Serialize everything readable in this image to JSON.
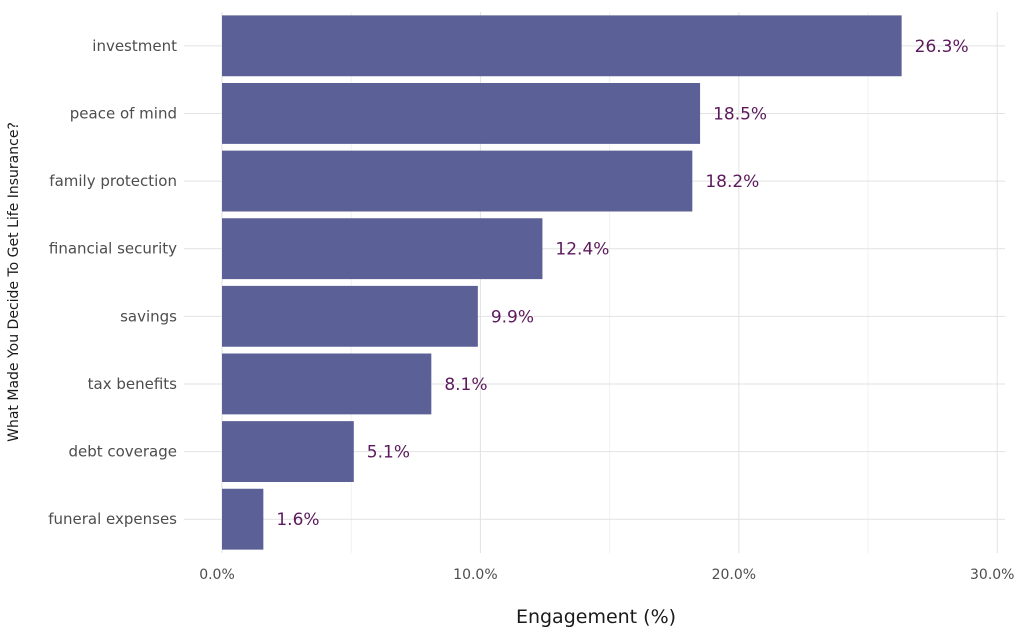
{
  "chart_data": {
    "type": "bar",
    "orientation": "horizontal",
    "categories": [
      "investment",
      "peace of mind",
      "family protection",
      "financial security",
      "savings",
      "tax benefits",
      "debt coverage",
      "funeral expenses"
    ],
    "values": [
      26.3,
      18.5,
      18.2,
      12.4,
      9.9,
      8.1,
      5.1,
      1.6
    ],
    "value_labels": [
      "26.3%",
      "18.5%",
      "18.2%",
      "12.4%",
      "9.9%",
      "8.1%",
      "5.1%",
      "1.6%"
    ],
    "x_ticks": [
      0,
      10,
      20,
      30
    ],
    "x_tick_labels": [
      "0.0%",
      "10.0%",
      "20.0%",
      "30.0%"
    ],
    "xlim": [
      0,
      30.3
    ],
    "xlabel": "Engagement (%)",
    "ylabel": "What Made You Decide To Get Life Insurance?",
    "grid": true,
    "bar_color": "#5b6096",
    "label_color": "#5c1a5c"
  }
}
